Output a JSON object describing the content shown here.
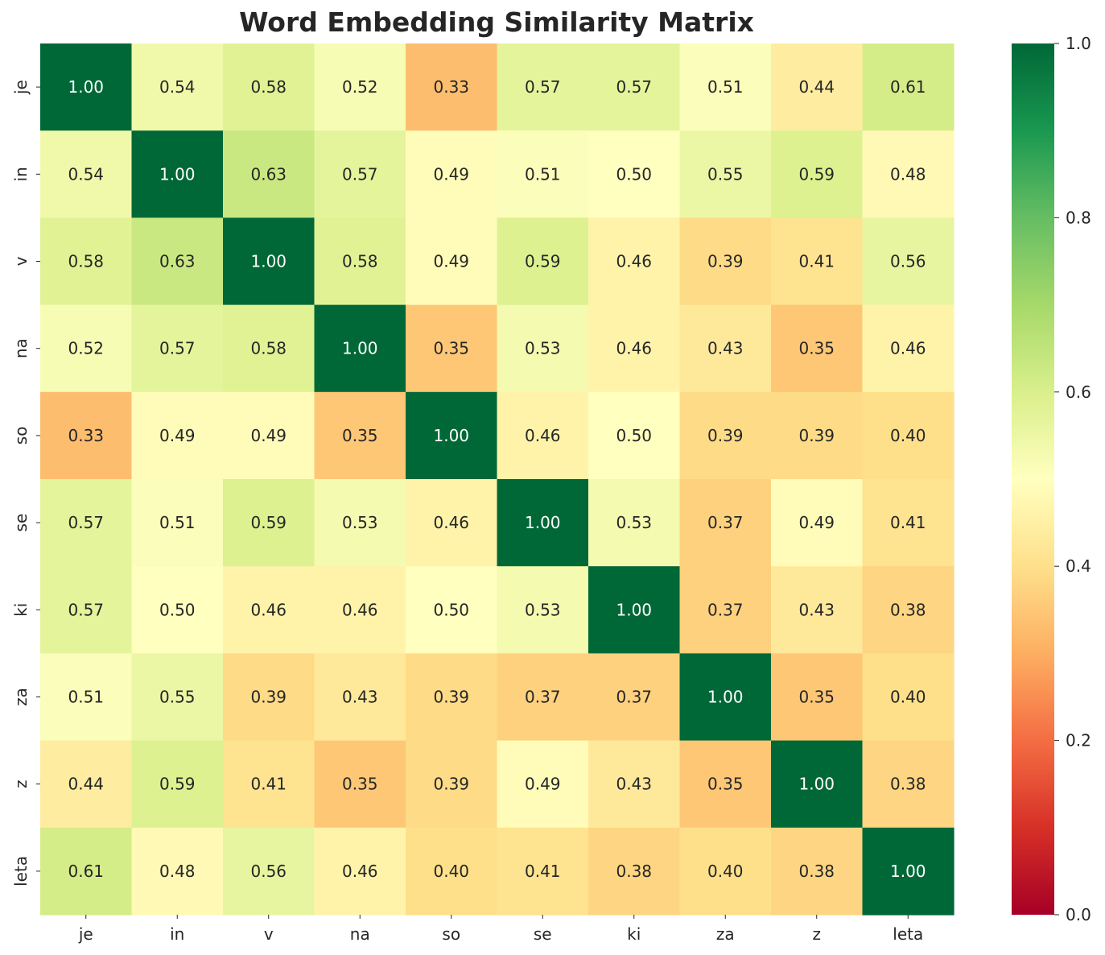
{
  "chart_data": {
    "type": "heatmap",
    "title": "Word Embedding Similarity Matrix",
    "x_labels": [
      "je",
      "in",
      "v",
      "na",
      "so",
      "se",
      "ki",
      "za",
      "z",
      "leta"
    ],
    "y_labels": [
      "je",
      "in",
      "v",
      "na",
      "so",
      "se",
      "ki",
      "za",
      "z",
      "leta"
    ],
    "values": [
      [
        1.0,
        0.54,
        0.58,
        0.52,
        0.33,
        0.57,
        0.57,
        0.51,
        0.44,
        0.61
      ],
      [
        0.54,
        1.0,
        0.63,
        0.57,
        0.49,
        0.51,
        0.5,
        0.55,
        0.59,
        0.48
      ],
      [
        0.58,
        0.63,
        1.0,
        0.58,
        0.49,
        0.59,
        0.46,
        0.39,
        0.41,
        0.56
      ],
      [
        0.52,
        0.57,
        0.58,
        1.0,
        0.35,
        0.53,
        0.46,
        0.43,
        0.35,
        0.46
      ],
      [
        0.33,
        0.49,
        0.49,
        0.35,
        1.0,
        0.46,
        0.5,
        0.39,
        0.39,
        0.4
      ],
      [
        0.57,
        0.51,
        0.59,
        0.53,
        0.46,
        1.0,
        0.53,
        0.37,
        0.49,
        0.41
      ],
      [
        0.57,
        0.5,
        0.46,
        0.46,
        0.5,
        0.53,
        1.0,
        0.37,
        0.43,
        0.38
      ],
      [
        0.51,
        0.55,
        0.39,
        0.43,
        0.39,
        0.37,
        0.37,
        1.0,
        0.35,
        0.4
      ],
      [
        0.44,
        0.59,
        0.41,
        0.35,
        0.39,
        0.49,
        0.43,
        0.35,
        1.0,
        0.38
      ],
      [
        0.61,
        0.48,
        0.56,
        0.46,
        0.4,
        0.41,
        0.38,
        0.4,
        0.38,
        1.0
      ]
    ],
    "value_format": "0.00",
    "colormap": "RdYlGn",
    "vmin": 0.0,
    "vmax": 1.0,
    "colorbar_ticks": [
      "0.0",
      "0.2",
      "0.4",
      "0.6",
      "0.8",
      "1.0"
    ],
    "grid": false
  }
}
